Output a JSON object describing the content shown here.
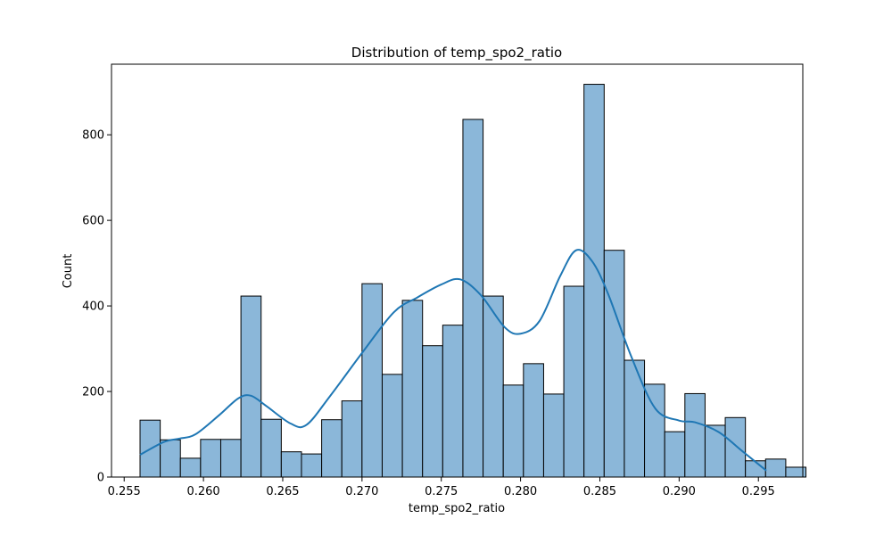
{
  "chart_data": {
    "type": "histogram",
    "title": "Distribution of temp_spo2_ratio",
    "xlabel": "temp_spo2_ratio",
    "ylabel": "Count",
    "xlim": [
      0.2542,
      0.2978
    ],
    "ylim": [
      0,
      965
    ],
    "x_ticks": [
      "0.255",
      "0.260",
      "0.265",
      "0.270",
      "0.275",
      "0.280",
      "0.285",
      "0.290",
      "0.295"
    ],
    "x_tick_values": [
      0.255,
      0.26,
      0.265,
      0.27,
      0.275,
      0.28,
      0.285,
      0.29,
      0.295
    ],
    "y_ticks": [
      "0",
      "200",
      "400",
      "600",
      "800"
    ],
    "y_tick_values": [
      0,
      200,
      400,
      600,
      800
    ],
    "bin_start": 0.256,
    "bin_width": 0.0012727,
    "counts": [
      133,
      87,
      44,
      88,
      88,
      423,
      135,
      59,
      54,
      134,
      178,
      452,
      240,
      413,
      307,
      355,
      836,
      423,
      215,
      265,
      194,
      446,
      918,
      530,
      273,
      217,
      106,
      195,
      121,
      139,
      38,
      42,
      23
    ],
    "kde": {
      "x": [
        0.256,
        0.2575,
        0.2585,
        0.2595,
        0.261,
        0.2622,
        0.263,
        0.264,
        0.2655,
        0.2665,
        0.268,
        0.27,
        0.272,
        0.2735,
        0.275,
        0.2762,
        0.2775,
        0.279,
        0.28,
        0.2812,
        0.2825,
        0.2835,
        0.2845,
        0.2855,
        0.287,
        0.2885,
        0.29,
        0.291,
        0.2925,
        0.294,
        0.2955
      ],
      "y": [
        52,
        82,
        90,
        100,
        145,
        184,
        190,
        165,
        125,
        122,
        190,
        290,
        385,
        420,
        450,
        462,
        425,
        350,
        335,
        365,
        470,
        530,
        505,
        430,
        280,
        160,
        132,
        128,
        105,
        60,
        15
      ]
    },
    "bar_fill": "#8bb7d9",
    "bar_edge": "#000000",
    "kde_color": "#1f77b4",
    "grid": false,
    "legend": "none"
  }
}
